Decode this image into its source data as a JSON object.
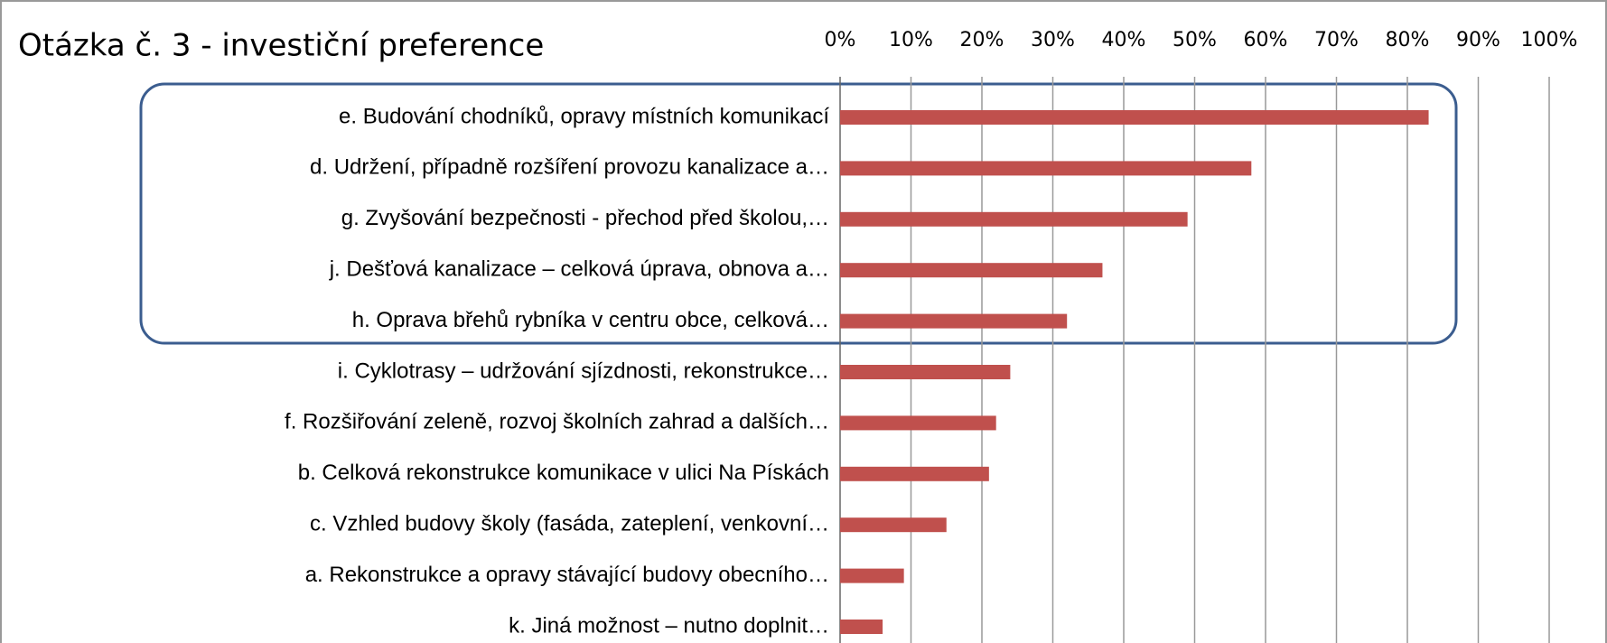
{
  "chart_data": {
    "type": "bar",
    "orientation": "horizontal",
    "title": "Otázka č. 3 - investiční preference",
    "categories": [
      "e. Budování chodníků, opravy místních komunikací",
      "d. Udržení, případně rozšíření provozu kanalizace a…",
      "g. Zvyšování bezpečnosti - přechod před školou,…",
      "j. Dešťová kanalizace – celková úprava, obnova a…",
      "h. Oprava břehů rybníka v centru obce, celková…",
      "i. Cyklotrasy – udržování sjízdnosti, rekonstrukce…",
      "f. Rozšiřování zeleně, rozvoj školních zahrad a dalších…",
      "b. Celková rekonstrukce komunikace v ulici Na Pískách",
      "c. Vzhled budovy školy (fasáda, zateplení, venkovní…",
      "a. Rekonstrukce a opravy stávající budovy obecního…",
      "k. Jiná možnost – nutno doplnit…"
    ],
    "values": [
      83,
      58,
      49,
      37,
      32,
      24,
      22,
      21,
      15,
      9,
      6
    ],
    "color": "#c0504d",
    "xlim": [
      0,
      100
    ],
    "xticks": [
      {
        "value": 0,
        "label": "0%"
      },
      {
        "value": 10,
        "label": "10%"
      },
      {
        "value": 20,
        "label": "20%"
      },
      {
        "value": 30,
        "label": "30%"
      },
      {
        "value": 40,
        "label": "40%"
      },
      {
        "value": 50,
        "label": "50%"
      },
      {
        "value": 60,
        "label": "60%"
      },
      {
        "value": 70,
        "label": "70%"
      },
      {
        "value": 80,
        "label": "80%"
      },
      {
        "value": 90,
        "label": "90%"
      },
      {
        "value": 100,
        "label": "100%"
      }
    ],
    "grid": true
  }
}
